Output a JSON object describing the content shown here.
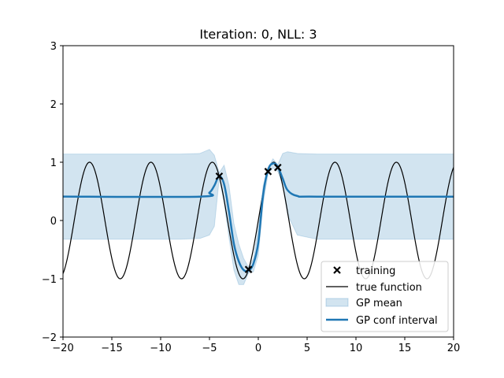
{
  "chart_data": {
    "type": "line",
    "title": "Iteration: 0, NLL: 3",
    "xlabel": "",
    "ylabel": "",
    "xlim": [
      -20,
      20
    ],
    "ylim": [
      -2,
      3
    ],
    "x_ticks": [
      -20,
      -15,
      -10,
      -5,
      0,
      5,
      10,
      15,
      20
    ],
    "x_tick_labels": [
      "−20",
      "−15",
      "−10",
      "−5",
      "0",
      "5",
      "10",
      "15",
      "20"
    ],
    "y_ticks": [
      -2,
      -1,
      0,
      1,
      2,
      3
    ],
    "y_tick_labels": [
      "−2",
      "−1",
      "0",
      "1",
      "2",
      "3"
    ],
    "grid": false,
    "legend_position": "lower-right",
    "legend": [
      "training",
      "true function",
      "GP mean",
      "GP conf interval"
    ],
    "series": [
      {
        "name": "training",
        "kind": "scatter",
        "marker": "x",
        "color": "#000000",
        "x": [
          -4.0,
          -1.0,
          1.0,
          2.0
        ],
        "y": [
          0.76,
          -0.84,
          0.84,
          0.91
        ]
      },
      {
        "name": "true function",
        "kind": "line",
        "color": "#000000",
        "formula": "sin(x)"
      },
      {
        "name": "GP mean",
        "kind": "band",
        "color": "#1f77b4",
        "x": [
          -20,
          -8,
          -6,
          -5,
          -4.5,
          -4,
          -3.5,
          -3,
          -2.5,
          -2,
          -1.5,
          -1,
          -0.5,
          0,
          0.5,
          1,
          1.5,
          2,
          2.5,
          3,
          4,
          6,
          20
        ],
        "lower": [
          -0.32,
          -0.32,
          -0.31,
          -0.25,
          -0.1,
          0.72,
          0.3,
          -0.3,
          -0.85,
          -1.1,
          -1.1,
          -0.9,
          -0.88,
          -0.6,
          0.3,
          0.8,
          0.9,
          0.84,
          0.6,
          0.1,
          -0.25,
          -0.32,
          -0.32
        ],
        "upper": [
          1.14,
          1.14,
          1.15,
          1.22,
          1.12,
          0.82,
          0.95,
          0.6,
          -0.05,
          -0.4,
          -0.65,
          -0.8,
          -0.66,
          -0.1,
          0.6,
          0.9,
          1.06,
          0.96,
          1.15,
          1.18,
          1.15,
          1.14,
          1.14
        ]
      },
      {
        "name": "GP conf interval",
        "kind": "line",
        "color": "#1f77b4",
        "x": [
          -20,
          -6,
          -5,
          -4.5,
          -4,
          -3.5,
          -3,
          -2.5,
          -2,
          -1.5,
          -1,
          -0.5,
          0,
          0.5,
          1,
          1.5,
          2,
          2.5,
          3,
          4,
          6,
          20
        ],
        "y": [
          0.41,
          0.41,
          0.48,
          0.6,
          0.76,
          0.62,
          0.15,
          -0.4,
          -0.7,
          -0.85,
          -0.86,
          -0.74,
          -0.38,
          0.45,
          0.87,
          0.98,
          0.92,
          0.72,
          0.52,
          0.42,
          0.41,
          0.41
        ]
      }
    ]
  }
}
